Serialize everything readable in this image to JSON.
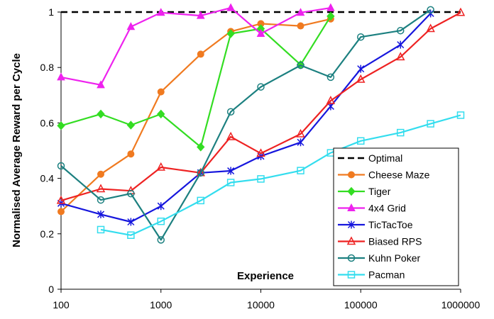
{
  "chart_data": {
    "type": "line",
    "xscale": "log",
    "xlim": [
      100,
      1000000
    ],
    "ylim": [
      0,
      1.05
    ],
    "xticks": [
      "100",
      "1000",
      "10000",
      "100000",
      "1000000"
    ],
    "yticks": [
      "0",
      "0.2",
      "0.4",
      "0.6",
      "0.8",
      "1"
    ],
    "xlabel": "Experience",
    "ylabel": "Normalised Average Reward per Cycle",
    "legend_position": "bottom-right",
    "grid": false,
    "series": [
      {
        "name": "Optimal",
        "color": "#000000",
        "marker": "none",
        "dash": true,
        "points": [
          [
            100,
            1
          ],
          [
            1000000,
            1
          ]
        ]
      },
      {
        "name": "Cheese Maze",
        "color": "#f07a20",
        "marker": "circle",
        "points": [
          [
            100,
            0.28
          ],
          [
            250,
            0.415
          ],
          [
            500,
            0.488
          ],
          [
            1000,
            0.712
          ],
          [
            2500,
            0.848
          ],
          [
            5000,
            0.93
          ],
          [
            10000,
            0.958
          ],
          [
            25000,
            0.95
          ],
          [
            50000,
            0.975
          ]
        ]
      },
      {
        "name": "Tiger",
        "color": "#33dd22",
        "marker": "diamond",
        "points": [
          [
            100,
            0.59
          ],
          [
            250,
            0.632
          ],
          [
            500,
            0.592
          ],
          [
            1000,
            0.632
          ],
          [
            2500,
            0.513
          ],
          [
            5000,
            0.922
          ],
          [
            10000,
            0.94
          ],
          [
            25000,
            0.81
          ],
          [
            50000,
            0.985
          ]
        ]
      },
      {
        "name": "4x4 Grid",
        "color": "#ee22ee",
        "marker": "triangle",
        "points": [
          [
            100,
            0.765
          ],
          [
            250,
            0.737
          ],
          [
            500,
            0.947
          ],
          [
            1000,
            0.998
          ],
          [
            2500,
            0.987
          ],
          [
            5000,
            1.015
          ],
          [
            10000,
            0.922
          ],
          [
            25000,
            0.998
          ],
          [
            50000,
            1.015
          ]
        ]
      },
      {
        "name": "TicTacToe",
        "color": "#1616dd",
        "marker": "star",
        "points": [
          [
            100,
            0.31
          ],
          [
            250,
            0.27
          ],
          [
            500,
            0.243
          ],
          [
            1000,
            0.3
          ],
          [
            2500,
            0.42
          ],
          [
            5000,
            0.427
          ],
          [
            10000,
            0.48
          ],
          [
            25000,
            0.53
          ],
          [
            50000,
            0.66
          ],
          [
            100000,
            0.795
          ],
          [
            250000,
            0.882
          ],
          [
            500000,
            0.995
          ]
        ]
      },
      {
        "name": "Biased RPS",
        "color": "#ee2222",
        "marker": "triangle-open",
        "points": [
          [
            100,
            0.32
          ],
          [
            250,
            0.362
          ],
          [
            500,
            0.355
          ],
          [
            1000,
            0.44
          ],
          [
            2500,
            0.42
          ],
          [
            5000,
            0.55
          ],
          [
            10000,
            0.49
          ],
          [
            25000,
            0.56
          ],
          [
            50000,
            0.68
          ],
          [
            100000,
            0.757
          ],
          [
            250000,
            0.838
          ],
          [
            500000,
            0.94
          ],
          [
            1000000,
            0.998
          ]
        ]
      },
      {
        "name": "Kuhn Poker",
        "color": "#1c8080",
        "marker": "circle-open",
        "points": [
          [
            100,
            0.445
          ],
          [
            250,
            0.322
          ],
          [
            500,
            0.345
          ],
          [
            1000,
            0.178
          ],
          [
            2500,
            0.42
          ],
          [
            5000,
            0.64
          ],
          [
            10000,
            0.73
          ],
          [
            25000,
            0.808
          ],
          [
            50000,
            0.765
          ],
          [
            100000,
            0.91
          ],
          [
            250000,
            0.933
          ],
          [
            500000,
            1.008
          ]
        ]
      },
      {
        "name": "Pacman",
        "color": "#33ddee",
        "marker": "square-open",
        "points": [
          [
            250,
            0.215
          ],
          [
            500,
            0.195
          ],
          [
            1000,
            0.245
          ],
          [
            2500,
            0.32
          ],
          [
            5000,
            0.385
          ],
          [
            10000,
            0.398
          ],
          [
            25000,
            0.428
          ],
          [
            50000,
            0.492
          ],
          [
            100000,
            0.535
          ],
          [
            250000,
            0.565
          ],
          [
            500000,
            0.597
          ],
          [
            1000000,
            0.628
          ]
        ]
      }
    ]
  }
}
